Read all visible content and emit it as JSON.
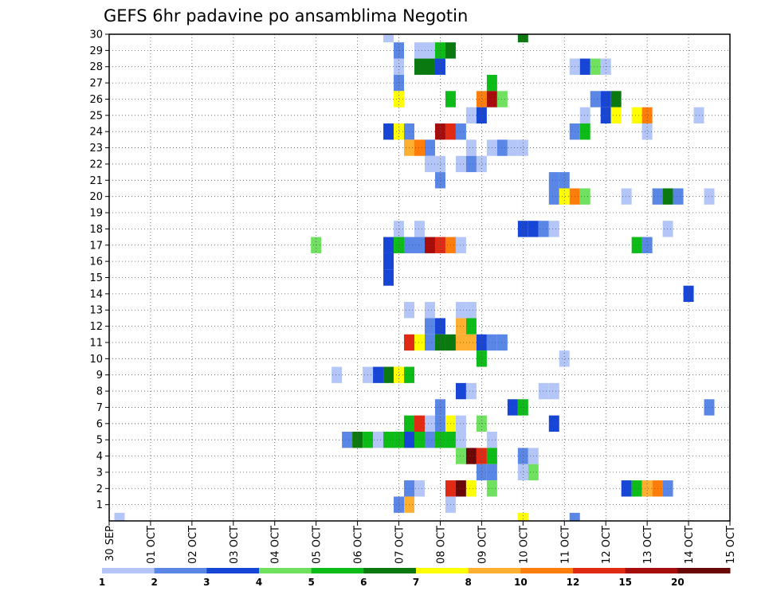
{
  "chart_data": {
    "type": "heatmap",
    "title": "GEFS 6hr padavine po ansamblima Negotin",
    "x_tick_labels": [
      "30 SEP",
      "01 OCT",
      "02 OCT",
      "03 OCT",
      "04 OCT",
      "05 OCT",
      "06 OCT",
      "07 OCT",
      "08 OCT",
      "09 OCT",
      "10 OCT",
      "11 OCT",
      "12 OCT",
      "13 OCT",
      "14 OCT",
      "15 OCT"
    ],
    "y_tick_labels": [
      "1",
      "2",
      "3",
      "4",
      "5",
      "6",
      "7",
      "8",
      "9",
      "10",
      "11",
      "12",
      "13",
      "14",
      "15",
      "16",
      "17",
      "18",
      "19",
      "20",
      "21",
      "22",
      "23",
      "24",
      "25",
      "26",
      "27",
      "28",
      "29",
      "30"
    ],
    "x_range_days": [
      0,
      15
    ],
    "y_range": [
      0,
      30
    ],
    "grid": true,
    "colorbar": {
      "labels": [
        "1",
        "2",
        "3",
        "4",
        "5",
        "6",
        "7",
        "8",
        "10",
        "12",
        "15",
        "20"
      ],
      "colors": [
        "#b3c6f7",
        "#5a86e6",
        "#1746d6",
        "#70e060",
        "#0dbb19",
        "#0a7a10",
        "#ffff00",
        "#ffb030",
        "#ff7d0a",
        "#e02a14",
        "#a60c0c",
        "#6a0808"
      ]
    },
    "cells": [
      [
        0.25,
        0,
        1
      ],
      [
        6.75,
        30,
        1
      ],
      [
        10.0,
        30,
        6
      ],
      [
        7.0,
        29,
        2
      ],
      [
        7.5,
        29,
        1
      ],
      [
        7.75,
        29,
        1
      ],
      [
        8.0,
        29,
        5
      ],
      [
        8.25,
        29,
        6
      ],
      [
        7.0,
        28,
        1
      ],
      [
        7.5,
        28,
        6
      ],
      [
        7.75,
        28,
        6
      ],
      [
        8.0,
        28,
        3
      ],
      [
        11.25,
        28,
        1
      ],
      [
        11.5,
        28,
        3
      ],
      [
        11.75,
        28,
        4
      ],
      [
        12.0,
        28,
        1
      ],
      [
        7.0,
        27,
        2
      ],
      [
        9.25,
        27,
        5
      ],
      [
        7.0,
        26,
        7
      ],
      [
        8.25,
        26,
        5
      ],
      [
        9.0,
        26,
        9
      ],
      [
        9.25,
        26,
        11
      ],
      [
        9.5,
        26,
        4
      ],
      [
        11.75,
        26,
        2
      ],
      [
        12.0,
        26,
        3
      ],
      [
        12.25,
        26,
        6
      ],
      [
        8.75,
        25,
        1
      ],
      [
        9.0,
        25,
        3
      ],
      [
        11.5,
        25,
        1
      ],
      [
        12.0,
        25,
        3
      ],
      [
        12.25,
        25,
        7
      ],
      [
        12.75,
        25,
        7
      ],
      [
        13.0,
        25,
        9
      ],
      [
        14.25,
        25,
        1
      ],
      [
        6.75,
        24,
        3
      ],
      [
        7.0,
        24,
        7
      ],
      [
        7.25,
        24,
        2
      ],
      [
        8.0,
        24,
        11
      ],
      [
        8.25,
        24,
        10
      ],
      [
        8.5,
        24,
        2
      ],
      [
        11.25,
        24,
        2
      ],
      [
        11.5,
        24,
        5
      ],
      [
        13.0,
        24,
        1
      ],
      [
        7.25,
        23,
        8
      ],
      [
        7.5,
        23,
        9
      ],
      [
        7.75,
        23,
        2
      ],
      [
        8.75,
        23,
        1
      ],
      [
        9.25,
        23,
        1
      ],
      [
        9.5,
        23,
        2
      ],
      [
        9.75,
        23,
        1
      ],
      [
        10.0,
        23,
        1
      ],
      [
        7.75,
        22,
        1
      ],
      [
        8.0,
        22,
        1
      ],
      [
        8.5,
        22,
        1
      ],
      [
        8.75,
        22,
        2
      ],
      [
        9.0,
        22,
        1
      ],
      [
        8.0,
        21,
        2
      ],
      [
        10.75,
        21,
        2
      ],
      [
        11.0,
        21,
        2
      ],
      [
        10.75,
        20,
        2
      ],
      [
        11.0,
        20,
        7
      ],
      [
        11.25,
        20,
        9
      ],
      [
        11.5,
        20,
        4
      ],
      [
        12.5,
        20,
        1
      ],
      [
        13.25,
        20,
        2
      ],
      [
        13.5,
        20,
        6
      ],
      [
        13.75,
        20,
        2
      ],
      [
        14.5,
        20,
        1
      ],
      [
        7.0,
        18,
        1
      ],
      [
        7.5,
        18,
        1
      ],
      [
        10.0,
        18,
        3
      ],
      [
        10.25,
        18,
        3
      ],
      [
        10.5,
        18,
        2
      ],
      [
        10.75,
        18,
        1
      ],
      [
        13.5,
        18,
        1
      ],
      [
        5.0,
        17,
        4
      ],
      [
        6.75,
        17,
        3
      ],
      [
        7.0,
        17,
        5
      ],
      [
        7.25,
        17,
        2
      ],
      [
        7.5,
        17,
        2
      ],
      [
        7.75,
        17,
        11
      ],
      [
        8.0,
        17,
        10
      ],
      [
        8.25,
        17,
        9
      ],
      [
        8.5,
        17,
        1
      ],
      [
        12.75,
        17,
        5
      ],
      [
        13.0,
        17,
        2
      ],
      [
        6.75,
        16,
        3
      ],
      [
        6.75,
        15,
        3
      ],
      [
        14.0,
        14,
        3
      ],
      [
        7.25,
        13,
        1
      ],
      [
        7.75,
        13,
        1
      ],
      [
        8.5,
        13,
        1
      ],
      [
        8.75,
        13,
        1
      ],
      [
        7.75,
        12,
        2
      ],
      [
        8.0,
        12,
        3
      ],
      [
        8.5,
        12,
        8
      ],
      [
        8.75,
        12,
        5
      ],
      [
        7.25,
        11,
        10
      ],
      [
        7.5,
        11,
        7
      ],
      [
        7.75,
        11,
        2
      ],
      [
        8.0,
        11,
        6
      ],
      [
        8.25,
        11,
        6
      ],
      [
        8.5,
        11,
        8
      ],
      [
        8.75,
        11,
        8
      ],
      [
        9.0,
        11,
        3
      ],
      [
        9.25,
        11,
        2
      ],
      [
        9.5,
        11,
        2
      ],
      [
        9.0,
        10,
        5
      ],
      [
        11.0,
        10,
        1
      ],
      [
        5.5,
        9,
        1
      ],
      [
        6.25,
        9,
        1
      ],
      [
        6.5,
        9,
        3
      ],
      [
        6.75,
        9,
        6
      ],
      [
        7.0,
        9,
        7
      ],
      [
        7.25,
        9,
        5
      ],
      [
        8.5,
        8,
        3
      ],
      [
        8.75,
        8,
        1
      ],
      [
        10.5,
        8,
        1
      ],
      [
        10.75,
        8,
        1
      ],
      [
        8.0,
        7,
        2
      ],
      [
        9.75,
        7,
        3
      ],
      [
        10.0,
        7,
        5
      ],
      [
        14.5,
        7,
        2
      ],
      [
        7.25,
        6,
        5
      ],
      [
        7.5,
        6,
        10
      ],
      [
        7.75,
        6,
        1
      ],
      [
        8.0,
        6,
        2
      ],
      [
        8.25,
        6,
        7
      ],
      [
        8.5,
        6,
        1
      ],
      [
        9.0,
        6,
        4
      ],
      [
        10.75,
        6,
        3
      ],
      [
        5.75,
        5,
        2
      ],
      [
        6.0,
        5,
        6
      ],
      [
        6.25,
        5,
        5
      ],
      [
        6.5,
        5,
        1
      ],
      [
        6.75,
        5,
        5
      ],
      [
        7.0,
        5,
        5
      ],
      [
        7.25,
        5,
        3
      ],
      [
        7.5,
        5,
        5
      ],
      [
        7.75,
        5,
        2
      ],
      [
        8.0,
        5,
        5
      ],
      [
        8.25,
        5,
        5
      ],
      [
        8.5,
        5,
        1
      ],
      [
        9.25,
        5,
        1
      ],
      [
        8.5,
        4,
        4
      ],
      [
        8.75,
        4,
        12
      ],
      [
        9.0,
        4,
        10
      ],
      [
        9.25,
        4,
        5
      ],
      [
        10.0,
        4,
        2
      ],
      [
        10.25,
        4,
        1
      ],
      [
        9.0,
        3,
        2
      ],
      [
        9.25,
        3,
        2
      ],
      [
        10.0,
        3,
        1
      ],
      [
        10.25,
        3,
        4
      ],
      [
        7.25,
        2,
        2
      ],
      [
        7.5,
        2,
        1
      ],
      [
        8.25,
        2,
        10
      ],
      [
        8.5,
        2,
        12
      ],
      [
        8.75,
        2,
        7
      ],
      [
        9.25,
        2,
        4
      ],
      [
        12.5,
        2,
        3
      ],
      [
        12.75,
        2,
        5
      ],
      [
        13.0,
        2,
        8
      ],
      [
        13.25,
        2,
        9
      ],
      [
        13.5,
        2,
        2
      ],
      [
        7.0,
        1,
        2
      ],
      [
        7.25,
        1,
        8
      ],
      [
        8.25,
        1,
        1
      ],
      [
        10.0,
        0,
        7
      ],
      [
        11.25,
        0,
        2
      ]
    ]
  }
}
